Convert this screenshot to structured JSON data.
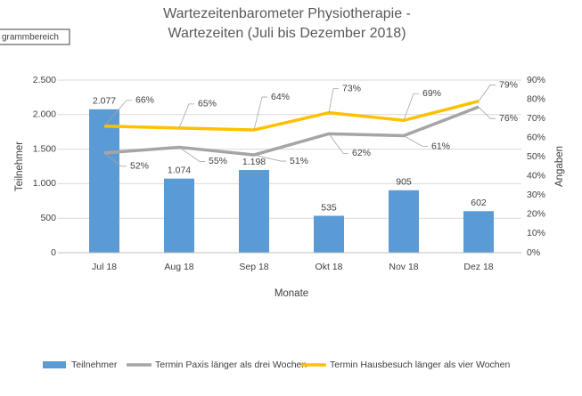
{
  "tooltip": "grammbereich",
  "chart_data": {
    "type": "bar",
    "title": [
      "Wartezeitenbarometer Physiotherapie -",
      "Wartezeiten (Juli bis Dezember 2018)"
    ],
    "x_label": "Monate",
    "y_label": "Teilnehmer",
    "y2_label": "Angaben",
    "categories": [
      "Jul 18",
      "Aug 18",
      "Sep 18",
      "Okt 18",
      "Nov 18",
      "Dez 18"
    ],
    "series": [
      {
        "name": "Teilnehmer",
        "type": "bar",
        "color": "#5b9bd5",
        "values": [
          2077,
          1074,
          1198,
          535,
          905,
          602
        ],
        "value_labels": [
          "2.077",
          "1.074",
          "1.198",
          "535",
          "905",
          "602"
        ]
      },
      {
        "name": "Termin Paxis länger als drei Wochen",
        "type": "line",
        "axis": "y2",
        "color": "#a5a5a5",
        "values": [
          52,
          55,
          51,
          62,
          61,
          76
        ],
        "value_labels": [
          "52%",
          "55%",
          "51%",
          "62%",
          "61%",
          "76%"
        ]
      },
      {
        "name": "Termin Hausbesuch länger als vier Wochen",
        "type": "line",
        "axis": "y2",
        "color": "#ffc000",
        "values": [
          66,
          65,
          64,
          73,
          69,
          79
        ],
        "value_labels": [
          "66%",
          "65%",
          "64%",
          "73%",
          "69%",
          "79%"
        ]
      }
    ],
    "ylim": [
      0,
      2500
    ],
    "yticks": [
      0,
      500,
      {
        "value": 1000,
        "label": "1.000"
      },
      {
        "value": 1500,
        "label": "1.500"
      },
      {
        "value": 2000,
        "label": "2.000"
      },
      {
        "value": 2500,
        "label": "2.500"
      }
    ],
    "y2lim": [
      0,
      90
    ],
    "y2ticks": [
      {
        "value": 0,
        "label": "0%"
      },
      {
        "value": 10,
        "label": "10%"
      },
      {
        "value": 20,
        "label": "20%"
      },
      {
        "value": 30,
        "label": "30%"
      },
      {
        "value": 40,
        "label": "40%"
      },
      {
        "value": 50,
        "label": "50%"
      },
      {
        "value": 60,
        "label": "60%"
      },
      {
        "value": 70,
        "label": "70%"
      },
      {
        "value": 80,
        "label": "80%"
      },
      {
        "value": 90,
        "label": "90%"
      }
    ],
    "grid": true,
    "legend": "bottom"
  }
}
